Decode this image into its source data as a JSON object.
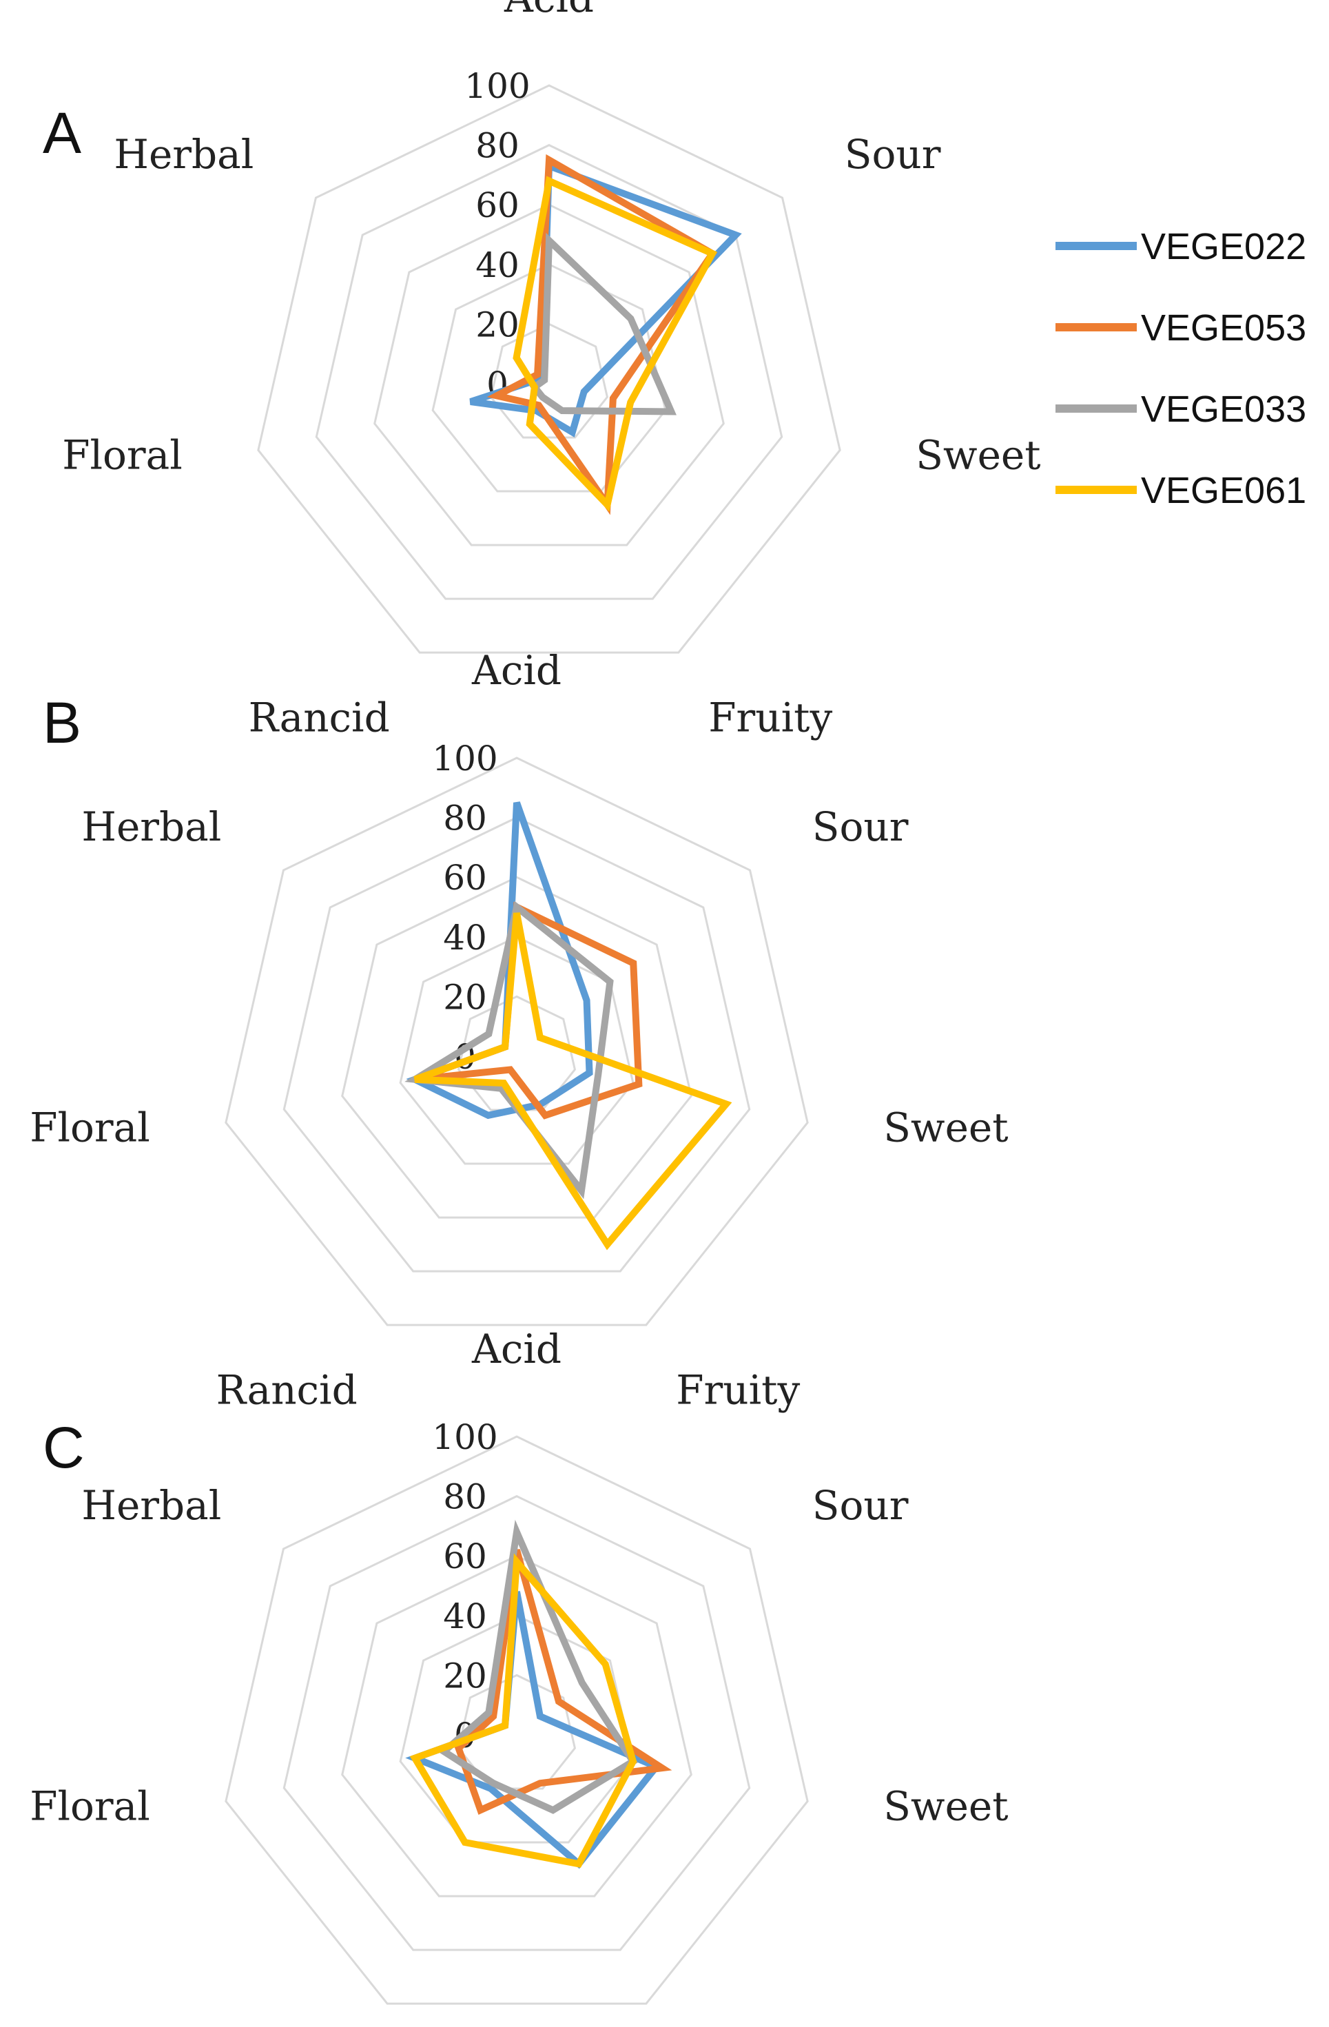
{
  "chart_data": [
    {
      "type": "radar",
      "panel": "A",
      "categories": [
        "Acid",
        "Sour",
        "Sweet",
        "Fruity",
        "Rancid",
        "Floral",
        "Herbal"
      ],
      "ticks": [
        "0",
        "20",
        "40",
        "60",
        "80",
        "100"
      ],
      "rlim": [
        0,
        100
      ],
      "grid": true,
      "series": [
        {
          "name": "VEGE022",
          "color": "#5b9bd5",
          "values": [
            73,
            80,
            12,
            18,
            10,
            27,
            3
          ]
        },
        {
          "name": "VEGE053",
          "color": "#ed7d31",
          "values": [
            75,
            70,
            22,
            45,
            8,
            18,
            5
          ]
        },
        {
          "name": "VEGE033",
          "color": "#a5a5a5",
          "values": [
            48,
            35,
            42,
            10,
            5,
            5,
            2
          ]
        },
        {
          "name": "VEGE061",
          "color": "#ffc000",
          "values": [
            68,
            70,
            28,
            45,
            15,
            5,
            14
          ]
        }
      ]
    },
    {
      "type": "radar",
      "panel": "B",
      "categories": [
        "Acid",
        "Sour",
        "Sweet",
        "Fruity",
        "Rancid",
        "Floral",
        "Herbal"
      ],
      "ticks": [
        "0",
        "20",
        "40",
        "60",
        "80",
        "100"
      ],
      "rlim": [
        0,
        100
      ],
      "grid": true,
      "series": [
        {
          "name": "VEGE022",
          "color": "#5b9bd5",
          "values": [
            85,
            30,
            25,
            18,
            22,
            35,
            5
          ]
        },
        {
          "name": "VEGE053",
          "color": "#ed7d31",
          "values": [
            50,
            50,
            42,
            22,
            5,
            35,
            5
          ]
        },
        {
          "name": "VEGE033",
          "color": "#a5a5a5",
          "values": [
            50,
            40,
            28,
            50,
            12,
            35,
            12
          ]
        },
        {
          "name": "VEGE061",
          "color": "#ffc000",
          "values": [
            48,
            10,
            72,
            70,
            10,
            35,
            5
          ]
        }
      ]
    },
    {
      "type": "radar",
      "panel": "C",
      "categories": [
        "Acid",
        "Sour",
        "Sweet",
        "Fruity",
        "Rancid",
        "Floral",
        "Herbal"
      ],
      "ticks": [
        "0",
        "20",
        "40",
        "60",
        "80",
        "100"
      ],
      "rlim": [
        0,
        100
      ],
      "grid": true,
      "series": [
        {
          "name": "VEGE022",
          "color": "#5b9bd5",
          "values": [
            48,
            10,
            48,
            48,
            20,
            35,
            5
          ]
        },
        {
          "name": "VEGE053",
          "color": "#ed7d31",
          "values": [
            62,
            18,
            50,
            18,
            28,
            20,
            10
          ]
        },
        {
          "name": "VEGE033",
          "color": "#a5a5a5",
          "values": [
            68,
            28,
            40,
            28,
            18,
            25,
            12
          ]
        },
        {
          "name": "VEGE061",
          "color": "#ffc000",
          "values": [
            58,
            38,
            40,
            48,
            40,
            35,
            5
          ]
        }
      ]
    }
  ],
  "legend": {
    "position": "right",
    "items": [
      {
        "name": "VEGE022",
        "color": "#5b9bd5"
      },
      {
        "name": "VEGE053",
        "color": "#ed7d31"
      },
      {
        "name": "VEGE033",
        "color": "#a5a5a5"
      },
      {
        "name": "VEGE061",
        "color": "#ffc000"
      }
    ]
  }
}
